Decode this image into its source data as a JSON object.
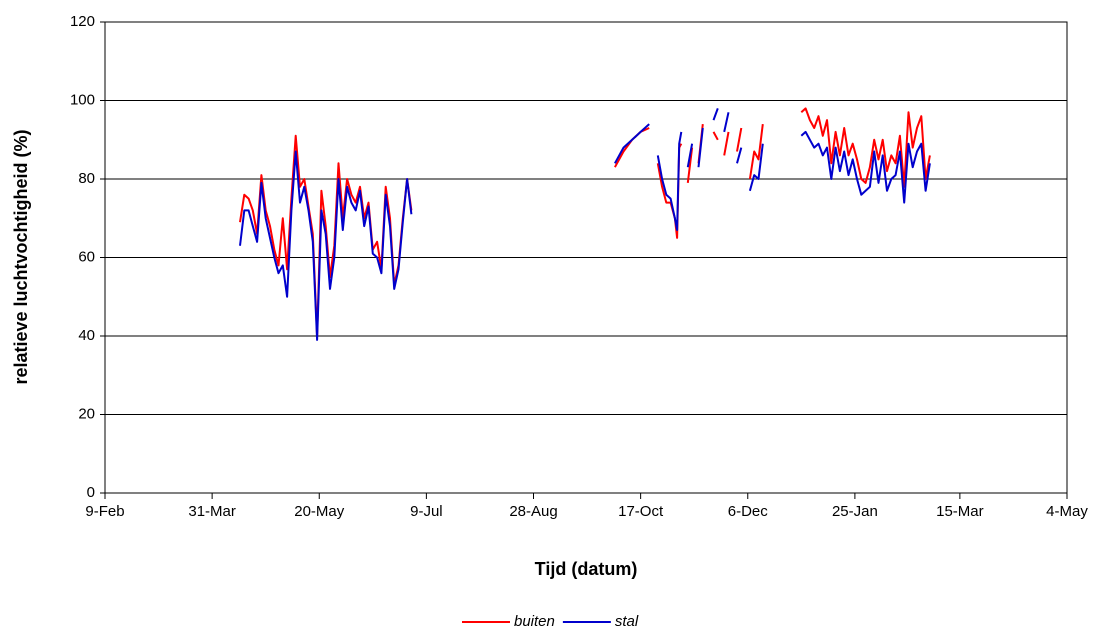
{
  "chart_data": {
    "type": "line",
    "y_label": "relatieve luchtvochtigheid (%)",
    "x_label": "Tijd (datum)",
    "xlim": [
      "9-Feb",
      "4-May"
    ],
    "xticks": [
      "9-Feb",
      "31-Mar",
      "20-May",
      "9-Jul",
      "28-Aug",
      "17-Oct",
      "6-Dec",
      "25-Jan",
      "15-Mar",
      "4-May"
    ],
    "ylim": [
      0,
      120
    ],
    "yticks": [
      0,
      20,
      40,
      60,
      80,
      100,
      120
    ],
    "grid": true,
    "legend": "bottom",
    "x": [
      "13-Apr",
      "15-Apr",
      "17-Apr",
      "19-Apr",
      "21-Apr",
      "23-Apr",
      "25-Apr",
      "27-Apr",
      "29-Apr",
      "1-May",
      "3-May",
      "5-May",
      "7-May",
      "9-May",
      "11-May",
      "13-May",
      "15-May",
      "17-May",
      "19-May",
      "21-May",
      "23-May",
      "25-May",
      "27-May",
      "29-May",
      "31-May",
      "2-Jun",
      "4-Jun",
      "6-Jun",
      "8-Jun",
      "10-Jun",
      "12-Jun",
      "14-Jun",
      "16-Jun",
      "18-Jun",
      "20-Jun",
      "22-Jun",
      "24-Jun",
      "26-Jun",
      "28-Jun",
      "30-Jun",
      "2-Jul",
      "20-Aug",
      "5-Oct",
      "9-Oct",
      "13-Oct",
      "17-Oct",
      "21-Oct",
      "23-Oct",
      "25-Oct",
      "27-Oct",
      "29-Oct",
      "31-Oct",
      "2-Nov",
      "3-Nov",
      "4-Nov",
      "5-Nov",
      "6-Nov",
      "8-Nov",
      "10-Nov",
      "11-Nov",
      "13-Nov",
      "15-Nov",
      "17-Nov",
      "20-Nov",
      "22-Nov",
      "23-Nov",
      "25-Nov",
      "27-Nov",
      "29-Nov",
      "1-Dec",
      "3-Dec",
      "5-Dec",
      "7-Dec",
      "9-Dec",
      "11-Dec",
      "13-Dec",
      "20-Dec",
      "31-Dec",
      "2-Jan",
      "4-Jan",
      "6-Jan",
      "8-Jan",
      "10-Jan",
      "12-Jan",
      "14-Jan",
      "16-Jan",
      "18-Jan",
      "20-Jan",
      "22-Jan",
      "24-Jan",
      "26-Jan",
      "28-Jan",
      "30-Jan",
      "1-Feb",
      "3-Feb",
      "5-Feb",
      "7-Feb",
      "9-Feb",
      "11-Feb",
      "13-Feb",
      "15-Feb",
      "17-Feb",
      "19-Feb",
      "21-Feb",
      "23-Feb",
      "25-Feb",
      "27-Feb",
      "1-Mar"
    ],
    "series": [
      {
        "name": "buiten",
        "color": "#ff0000",
        "values": [
          69,
          76,
          75,
          72,
          66,
          81,
          72,
          68,
          62,
          58,
          70,
          57,
          75,
          91,
          78,
          80,
          73,
          66,
          40,
          77,
          68,
          55,
          63,
          84,
          70,
          80,
          76,
          74,
          78,
          70,
          74,
          62,
          64,
          57,
          78,
          70,
          53,
          58,
          70,
          80,
          72,
          null,
          83,
          87,
          90,
          92,
          93,
          null,
          84,
          78,
          74,
          74,
          70,
          65,
          88,
          89,
          null,
          79,
          88,
          null,
          84,
          94,
          null,
          92,
          90,
          null,
          86,
          92,
          null,
          87,
          93,
          null,
          80,
          87,
          85,
          94,
          null,
          97,
          98,
          95,
          93,
          96,
          91,
          95,
          84,
          92,
          86,
          93,
          86,
          89,
          85,
          80,
          79,
          83,
          90,
          85,
          90,
          82,
          86,
          84,
          91,
          78,
          97,
          88,
          93,
          96,
          80,
          86
        ]
      },
      {
        "name": "stal",
        "color": "#0000cc",
        "values": [
          63,
          72,
          72,
          68,
          64,
          79,
          70,
          65,
          60,
          56,
          58,
          50,
          72,
          87,
          74,
          78,
          72,
          64,
          39,
          72,
          66,
          52,
          60,
          80,
          67,
          78,
          74,
          72,
          77,
          68,
          73,
          61,
          60,
          56,
          76,
          68,
          52,
          57,
          69,
          80,
          71,
          null,
          84,
          88,
          90,
          92,
          94,
          null,
          86,
          80,
          76,
          75,
          70,
          67,
          89,
          92,
          null,
          83,
          89,
          null,
          83,
          93,
          null,
          95,
          98,
          null,
          92,
          97,
          null,
          84,
          88,
          null,
          77,
          81,
          80,
          89,
          null,
          91,
          92,
          90,
          88,
          89,
          86,
          88,
          80,
          88,
          82,
          87,
          81,
          85,
          80,
          76,
          77,
          78,
          87,
          79,
          86,
          77,
          80,
          81,
          87,
          74,
          89,
          83,
          87,
          89,
          77,
          84
        ]
      }
    ]
  }
}
